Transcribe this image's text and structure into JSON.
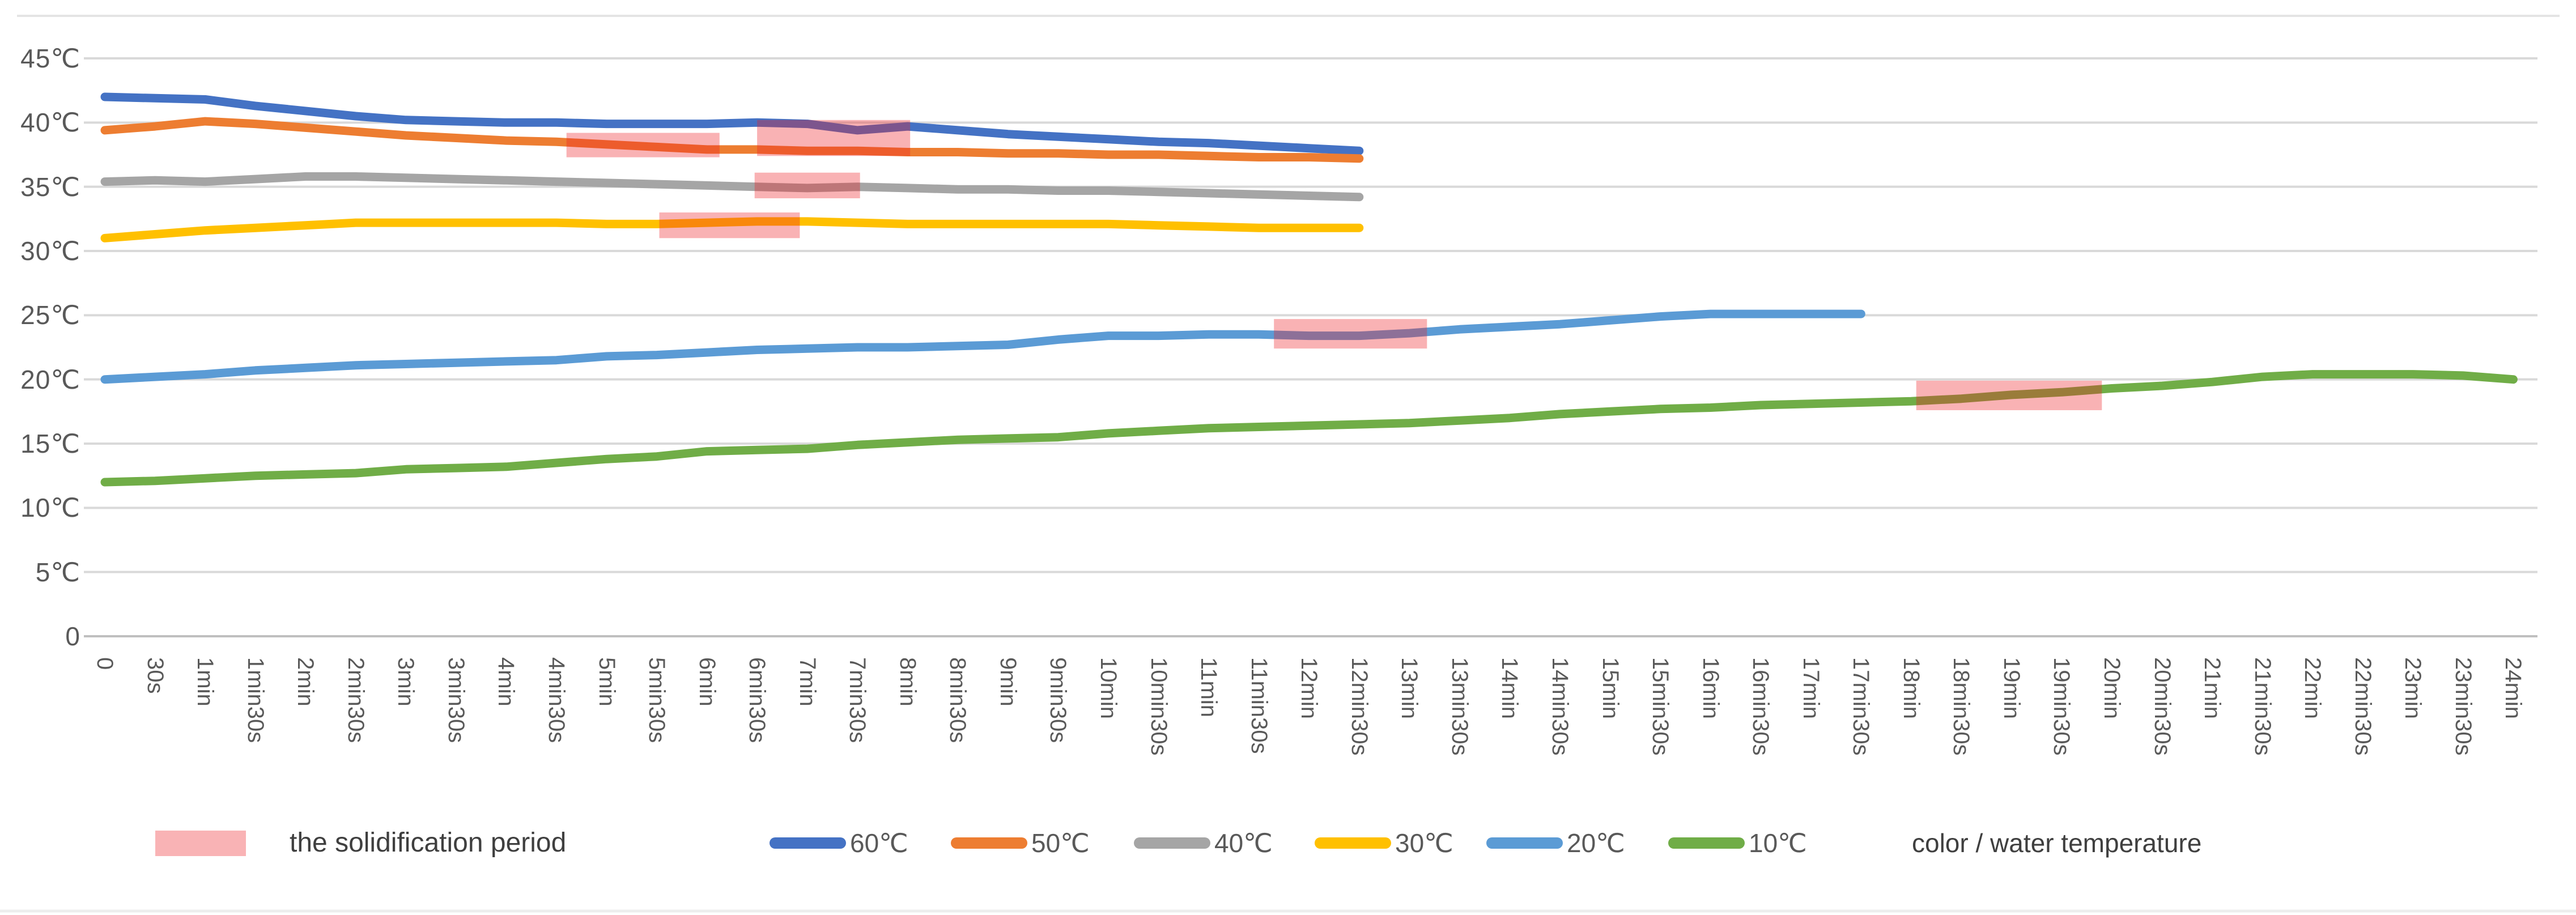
{
  "chart_data": {
    "type": "line",
    "title": "",
    "xlabel": "",
    "ylabel": "",
    "ylim": [
      0,
      45
    ],
    "grid": "horizontal",
    "y_tick_labels": [
      "45℃",
      "40℃",
      "35℃",
      "30℃",
      "25℃",
      "20℃",
      "15℃",
      "10℃",
      "5℃",
      "0"
    ],
    "y_tick_values": [
      45,
      40,
      35,
      30,
      25,
      20,
      15,
      10,
      5,
      0
    ],
    "x_categories": [
      "0",
      "30s",
      "1min",
      "1min30s",
      "2min",
      "2min30s",
      "3min",
      "3min30s",
      "4min",
      "4min30s",
      "5min",
      "5min30s",
      "6min",
      "6min30s",
      "7min",
      "7min30s",
      "8min",
      "8min30s",
      "9min",
      "9min30s",
      "10min",
      "10min30s",
      "11min",
      "11min30s",
      "12min",
      "12min30s",
      "13min",
      "13min30s",
      "14min",
      "14min30s",
      "15min",
      "15min30s",
      "16min",
      "16min30s",
      "17min",
      "17min30s",
      "18min",
      "18min30s",
      "19min",
      "19min30s",
      "20min",
      "20min30s",
      "21min",
      "21min30s",
      "22min",
      "22min30s",
      "23min",
      "23min30s",
      "24min"
    ],
    "series": [
      {
        "key": "60c",
        "name": "60℃",
        "color": "#4472C4",
        "values": [
          42.0,
          41.9,
          41.8,
          41.3,
          40.9,
          40.5,
          40.2,
          40.1,
          40.0,
          40.0,
          39.9,
          39.9,
          39.9,
          40.0,
          39.9,
          39.4,
          39.7,
          39.4,
          39.1,
          38.9,
          38.7,
          38.5,
          38.4,
          38.2,
          38.0,
          37.8
        ]
      },
      {
        "key": "50c",
        "name": "50℃",
        "color": "#ED7D31",
        "values": [
          39.4,
          39.7,
          40.1,
          39.9,
          39.6,
          39.3,
          39.0,
          38.8,
          38.6,
          38.5,
          38.3,
          38.1,
          37.9,
          37.9,
          37.8,
          37.8,
          37.7,
          37.7,
          37.6,
          37.6,
          37.5,
          37.5,
          37.4,
          37.3,
          37.3,
          37.2
        ]
      },
      {
        "key": "40c",
        "name": "40℃",
        "color": "#A5A5A5",
        "values": [
          35.4,
          35.5,
          35.4,
          35.6,
          35.8,
          35.8,
          35.7,
          35.6,
          35.5,
          35.4,
          35.3,
          35.2,
          35.1,
          35.0,
          34.9,
          35.0,
          34.9,
          34.8,
          34.8,
          34.7,
          34.7,
          34.6,
          34.5,
          34.4,
          34.3,
          34.2
        ]
      },
      {
        "key": "30c",
        "name": "30℃",
        "color": "#FFC000",
        "values": [
          31.0,
          31.3,
          31.6,
          31.8,
          32.0,
          32.2,
          32.2,
          32.2,
          32.2,
          32.2,
          32.1,
          32.1,
          32.2,
          32.3,
          32.3,
          32.2,
          32.1,
          32.1,
          32.1,
          32.1,
          32.1,
          32.0,
          31.9,
          31.8,
          31.8,
          31.8
        ]
      },
      {
        "key": "20c",
        "name": "20℃",
        "color": "#5B9BD5",
        "values": [
          20.0,
          20.2,
          20.4,
          20.7,
          20.9,
          21.1,
          21.2,
          21.3,
          21.4,
          21.5,
          21.8,
          21.9,
          22.1,
          22.3,
          22.4,
          22.5,
          22.5,
          22.6,
          22.7,
          23.1,
          23.4,
          23.4,
          23.5,
          23.5,
          23.4,
          23.4,
          23.6,
          23.9,
          24.1,
          24.3,
          24.6,
          24.9,
          25.1,
          25.1,
          25.1,
          25.1
        ]
      },
      {
        "key": "10c",
        "name": "10℃",
        "color": "#70AD47",
        "values": [
          12.0,
          12.1,
          12.3,
          12.5,
          12.6,
          12.7,
          13.0,
          13.1,
          13.2,
          13.5,
          13.8,
          14.0,
          14.4,
          14.5,
          14.6,
          14.9,
          15.1,
          15.3,
          15.4,
          15.5,
          15.8,
          16.0,
          16.2,
          16.3,
          16.4,
          16.5,
          16.6,
          16.8,
          17.0,
          17.3,
          17.5,
          17.7,
          17.8,
          18.0,
          18.1,
          18.2,
          18.3,
          18.5,
          18.8,
          19.0,
          19.3,
          19.5,
          19.8,
          20.2,
          20.4,
          20.4,
          20.4,
          20.3,
          20.0
        ]
      }
    ],
    "solidification_periods": [
      {
        "series": "50℃",
        "start_index": 9.2,
        "end_index": 12.25,
        "temp_top": 39.2,
        "temp_bottom": 37.3
      },
      {
        "series": "30℃",
        "start_index": 11.05,
        "end_index": 13.85,
        "temp_top": 33.0,
        "temp_bottom": 31.0
      },
      {
        "series": "40℃",
        "start_index": 12.95,
        "end_index": 15.05,
        "temp_top": 36.1,
        "temp_bottom": 34.1
      },
      {
        "series": "60℃",
        "start_index": 13.0,
        "end_index": 16.05,
        "temp_top": 40.2,
        "temp_bottom": 37.4
      },
      {
        "series": "20℃",
        "start_index": 23.3,
        "end_index": 26.35,
        "temp_top": 24.7,
        "temp_bottom": 22.4
      },
      {
        "series": "10℃",
        "start_index": 36.1,
        "end_index": 39.8,
        "temp_top": 19.9,
        "temp_bottom": 17.6
      }
    ],
    "legend_position": "bottom"
  },
  "legend": {
    "solidification_label": "the solidification period",
    "series_note": "color / water temperature",
    "highlight_color": "#ED1C24",
    "highlight_opacity": 0.34,
    "highlight_visible_tint": "#F9B3B5"
  }
}
